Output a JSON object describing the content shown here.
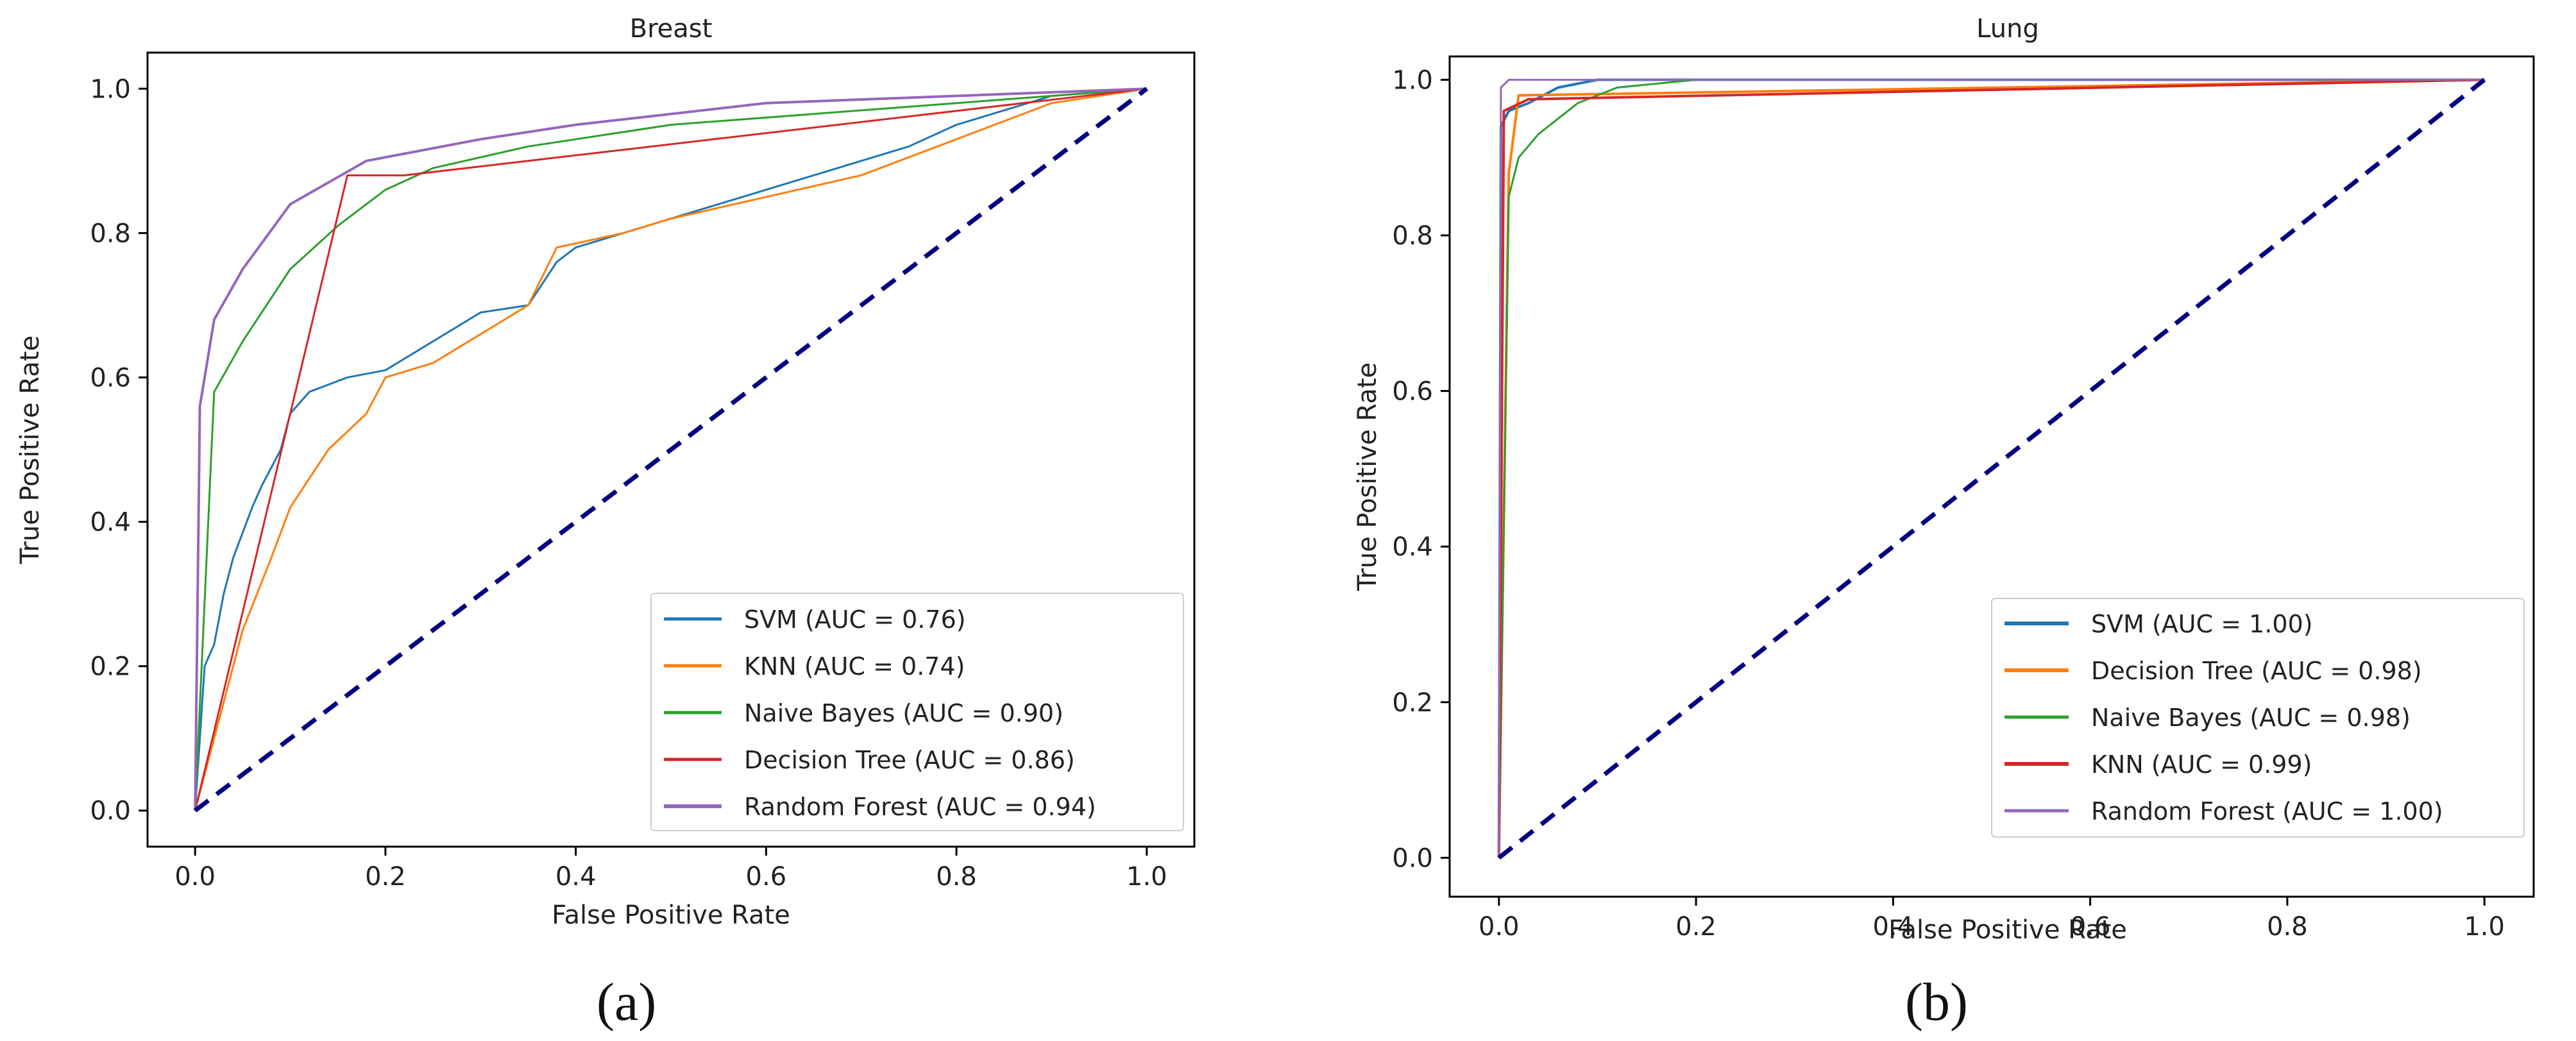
{
  "figure": {
    "panel_labels": [
      "(a)",
      "(b)"
    ]
  },
  "colors": {
    "svm": "#1f77b4",
    "knn": "#ff7f0e",
    "naive_bayes": "#2ca02c",
    "decision_tree": "#d62728",
    "random_forest": "#9467bd",
    "diagonal": "#000080"
  },
  "chart_data": [
    {
      "type": "line",
      "title": "Breast",
      "xlabel": "False Positive Rate",
      "ylabel": "True Positive Rate",
      "xlim": [
        -0.05,
        1.05
      ],
      "ylim": [
        -0.05,
        1.05
      ],
      "xticks": [
        0.0,
        0.2,
        0.4,
        0.6,
        0.8,
        1.0
      ],
      "yticks": [
        0.0,
        0.2,
        0.4,
        0.6,
        0.8,
        1.0
      ],
      "tick_labels": [
        "0.0",
        "0.2",
        "0.4",
        "0.6",
        "0.8",
        "1.0"
      ],
      "legend_position": "lower-right",
      "diagonal": [
        [
          0,
          0
        ],
        [
          1,
          1
        ]
      ],
      "series": [
        {
          "key": "svm",
          "name": "SVM (AUC = 0.76)",
          "width": 3,
          "points": [
            [
              0,
              0
            ],
            [
              0.005,
              0.1
            ],
            [
              0.01,
              0.2
            ],
            [
              0.02,
              0.23
            ],
            [
              0.03,
              0.3
            ],
            [
              0.04,
              0.35
            ],
            [
              0.06,
              0.42
            ],
            [
              0.07,
              0.45
            ],
            [
              0.09,
              0.5
            ],
            [
              0.1,
              0.55
            ],
            [
              0.12,
              0.58
            ],
            [
              0.16,
              0.6
            ],
            [
              0.2,
              0.61
            ],
            [
              0.25,
              0.65
            ],
            [
              0.3,
              0.69
            ],
            [
              0.35,
              0.7
            ],
            [
              0.38,
              0.76
            ],
            [
              0.4,
              0.78
            ],
            [
              0.5,
              0.82
            ],
            [
              0.6,
              0.86
            ],
            [
              0.65,
              0.88
            ],
            [
              0.7,
              0.9
            ],
            [
              0.75,
              0.92
            ],
            [
              0.8,
              0.95
            ],
            [
              0.9,
              0.99
            ],
            [
              1,
              1
            ]
          ]
        },
        {
          "key": "knn",
          "name": "KNN (AUC = 0.74)",
          "width": 3,
          "points": [
            [
              0,
              0
            ],
            [
              0.02,
              0.1
            ],
            [
              0.05,
              0.25
            ],
            [
              0.08,
              0.35
            ],
            [
              0.1,
              0.42
            ],
            [
              0.14,
              0.5
            ],
            [
              0.18,
              0.55
            ],
            [
              0.2,
              0.6
            ],
            [
              0.25,
              0.62
            ],
            [
              0.3,
              0.66
            ],
            [
              0.35,
              0.7
            ],
            [
              0.38,
              0.78
            ],
            [
              0.45,
              0.8
            ],
            [
              0.5,
              0.82
            ],
            [
              0.6,
              0.85
            ],
            [
              0.7,
              0.88
            ],
            [
              0.8,
              0.93
            ],
            [
              0.9,
              0.98
            ],
            [
              1,
              1
            ]
          ]
        },
        {
          "key": "naive_bayes",
          "name": "Naive Bayes (AUC = 0.90)",
          "width": 3,
          "points": [
            [
              0,
              0
            ],
            [
              0.02,
              0.58
            ],
            [
              0.05,
              0.65
            ],
            [
              0.1,
              0.75
            ],
            [
              0.15,
              0.81
            ],
            [
              0.2,
              0.86
            ],
            [
              0.25,
              0.89
            ],
            [
              0.35,
              0.92
            ],
            [
              0.5,
              0.95
            ],
            [
              0.7,
              0.97
            ],
            [
              0.9,
              0.99
            ],
            [
              1,
              1
            ]
          ]
        },
        {
          "key": "decision_tree",
          "name": "Decision Tree (AUC = 0.86)",
          "width": 3,
          "points": [
            [
              0,
              0
            ],
            [
              0.16,
              0.88
            ],
            [
              0.22,
              0.88
            ],
            [
              1,
              1
            ]
          ]
        },
        {
          "key": "random_forest",
          "name": "Random Forest (AUC = 0.94)",
          "width": 4,
          "points": [
            [
              0,
              0
            ],
            [
              0.005,
              0.56
            ],
            [
              0.02,
              0.68
            ],
            [
              0.05,
              0.75
            ],
            [
              0.1,
              0.84
            ],
            [
              0.18,
              0.9
            ],
            [
              0.3,
              0.93
            ],
            [
              0.4,
              0.95
            ],
            [
              0.6,
              0.98
            ],
            [
              0.8,
              0.99
            ],
            [
              1,
              1
            ]
          ]
        }
      ]
    },
    {
      "type": "line",
      "title": "Lung",
      "xlabel": "False Positive Rate",
      "ylabel": "True Positive Rate",
      "xlim": [
        -0.05,
        1.05
      ],
      "ylim": [
        -0.05,
        1.03
      ],
      "xticks": [
        0.0,
        0.2,
        0.4,
        0.6,
        0.8,
        1.0
      ],
      "yticks": [
        0.0,
        0.2,
        0.4,
        0.6,
        0.8,
        1.0
      ],
      "tick_labels": [
        "0.0",
        "0.2",
        "0.4",
        "0.6",
        "0.8",
        "1.0"
      ],
      "legend_position": "lower-right",
      "diagonal": [
        [
          0,
          0
        ],
        [
          1,
          1
        ]
      ],
      "series": [
        {
          "key": "svm",
          "name": "SVM (AUC = 1.00)",
          "width": 4,
          "points": [
            [
              0,
              0
            ],
            [
              0.002,
              0.94
            ],
            [
              0.01,
              0.96
            ],
            [
              0.03,
              0.97
            ],
            [
              0.06,
              0.99
            ],
            [
              0.1,
              1
            ],
            [
              1,
              1
            ]
          ]
        },
        {
          "key": "knn",
          "name": "Decision Tree (AUC = 0.98)",
          "width": 4,
          "points": [
            [
              0,
              0
            ],
            [
              0.01,
              0.88
            ],
            [
              0.02,
              0.98
            ],
            [
              1,
              1
            ]
          ]
        },
        {
          "key": "naive_bayes",
          "name": "Naive Bayes (AUC = 0.98)",
          "width": 3,
          "points": [
            [
              0,
              0
            ],
            [
              0.01,
              0.85
            ],
            [
              0.02,
              0.9
            ],
            [
              0.04,
              0.93
            ],
            [
              0.06,
              0.95
            ],
            [
              0.08,
              0.97
            ],
            [
              0.12,
              0.99
            ],
            [
              0.2,
              1
            ],
            [
              1,
              1
            ]
          ]
        },
        {
          "key": "decision_tree",
          "name": "KNN (AUC = 0.99)",
          "width": 4,
          "points": [
            [
              0,
              0
            ],
            [
              0.005,
              0.96
            ],
            [
              0.03,
              0.975
            ],
            [
              1,
              1
            ]
          ]
        },
        {
          "key": "random_forest",
          "name": "Random Forest (AUC = 1.00)",
          "width": 3,
          "points": [
            [
              0,
              0
            ],
            [
              0.002,
              0.99
            ],
            [
              0.01,
              1
            ],
            [
              1,
              1
            ]
          ]
        }
      ]
    }
  ]
}
